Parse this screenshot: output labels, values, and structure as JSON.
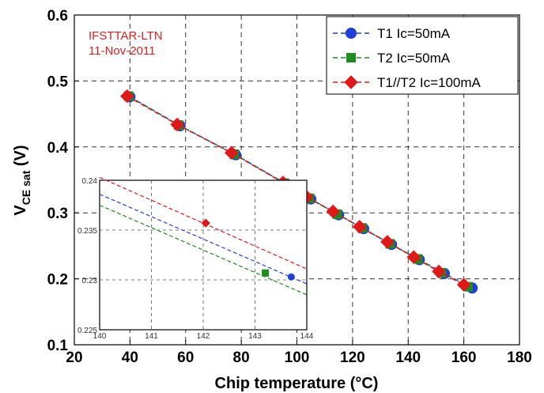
{
  "chart_data": [
    {
      "type": "line",
      "xlabel": "Chip temperature (°C)",
      "ylabel": {
        "main": "V",
        "sub": "CE sat",
        "unit": " (V)"
      },
      "xlim": [
        20,
        180
      ],
      "ylim": [
        0.1,
        0.6
      ],
      "xticks": [
        20,
        40,
        60,
        80,
        100,
        120,
        140,
        160,
        180
      ],
      "yticks": [
        0.1,
        0.2,
        0.3,
        0.4,
        0.5,
        0.6
      ],
      "grid": true,
      "legend_position": "top-right",
      "annotations": [
        "IFSTTAR-LTN",
        "11-Nov-2011"
      ],
      "series": [
        {
          "name": "T1 Ic=50mA",
          "color": "#1f3fdc",
          "marker": "circle",
          "x": [
            40,
            58,
            78,
            96,
            105,
            115,
            124,
            134,
            144,
            153,
            163
          ],
          "y": [
            0.476,
            0.432,
            0.388,
            0.344,
            0.321,
            0.297,
            0.276,
            0.252,
            0.229,
            0.208,
            0.186
          ]
        },
        {
          "name": "T2 Ic=50mA",
          "color": "#1e8c1e",
          "marker": "square",
          "x": [
            39.5,
            57.5,
            77.5,
            95.5,
            104.5,
            114.5,
            123.5,
            133.5,
            143.5,
            152,
            161.5
          ],
          "y": [
            0.477,
            0.433,
            0.389,
            0.345,
            0.322,
            0.298,
            0.277,
            0.253,
            0.23,
            0.209,
            0.188
          ]
        },
        {
          "name": "T1//T2 Ic=100mA",
          "color": "#e01818",
          "marker": "diamond",
          "x": [
            39,
            57,
            76.5,
            95,
            103.5,
            113,
            122.5,
            132.5,
            142,
            151,
            160
          ],
          "y": [
            0.477,
            0.434,
            0.391,
            0.346,
            0.324,
            0.302,
            0.279,
            0.256,
            0.233,
            0.211,
            0.191
          ]
        }
      ]
    },
    {
      "type": "scatter",
      "inset": true,
      "xlim": [
        140,
        144
      ],
      "ylim": [
        0.225,
        0.24
      ],
      "xticks": [
        140,
        141,
        142,
        143,
        144
      ],
      "yticks": [
        0.225,
        0.23,
        0.235,
        0.24
      ],
      "series": [
        {
          "name": "T1 Ic=50mA",
          "color": "#1f3fdc",
          "marker": "circle",
          "x": [
            143.7
          ],
          "y": [
            0.2303
          ],
          "line": [
            [
              140,
              0.2386
            ],
            [
              144,
              0.2296
            ]
          ]
        },
        {
          "name": "T2 Ic=50mA",
          "color": "#1e8c1e",
          "marker": "square",
          "x": [
            143.2
          ],
          "y": [
            0.2307
          ],
          "line": [
            [
              140,
              0.2375
            ],
            [
              144,
              0.2285
            ]
          ]
        },
        {
          "name": "T1//T2 Ic=100mA",
          "color": "#e01818",
          "marker": "diamond",
          "x": [
            142.05
          ],
          "y": [
            0.2357
          ],
          "line": [
            [
              140,
              0.2403
            ],
            [
              144,
              0.2311
            ]
          ]
        }
      ]
    }
  ]
}
